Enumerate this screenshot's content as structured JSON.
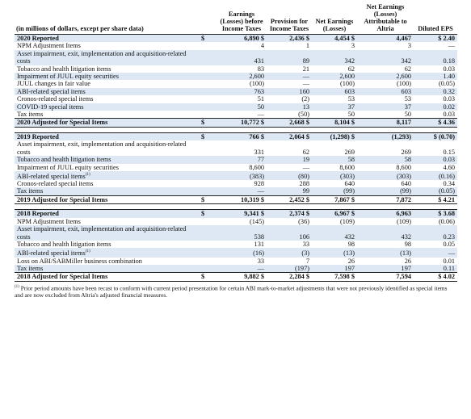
{
  "header": {
    "label": "(in millions of dollars, except per share data)",
    "columns": [
      "Earnings (Losses) before Income Taxes",
      "Provision for Income Taxes",
      "Net Earnings (Losses)",
      "Net Earnings (Losses) Attributable to Altria",
      "Diluted EPS"
    ]
  },
  "sections": [
    {
      "rows": [
        {
          "label": "2020 Reported",
          "currency": "$",
          "cells": [
            "6,890 $",
            "2,436 $",
            "4,454 $",
            "4,467",
            "$ 2.40"
          ]
        },
        {
          "label": "NPM Adjustment Items",
          "cells": [
            "4",
            "1",
            "3",
            "3",
            "—"
          ]
        },
        {
          "label": "Asset impairment, exit, implementation and acquisition-related costs",
          "cells": [
            "431",
            "89",
            "342",
            "342",
            "0.18"
          ]
        },
        {
          "label": "Tobacco and health litigation items",
          "cells": [
            "83",
            "21",
            "62",
            "62",
            "0.03"
          ]
        },
        {
          "label": "Impairment of JUUL equity securities",
          "cells": [
            "2,600",
            "—",
            "2,600",
            "2,600",
            "1.40"
          ]
        },
        {
          "label": "JUUL changes in fair value",
          "cells": [
            "(100)",
            "—",
            "(100)",
            "(100)",
            "(0.05)"
          ]
        },
        {
          "label": "ABI-related special items",
          "cells": [
            "763",
            "160",
            "603",
            "603",
            "0.32"
          ]
        },
        {
          "label": "Cronos-related special items",
          "cells": [
            "51",
            "(2)",
            "53",
            "53",
            "0.03"
          ]
        },
        {
          "label": "COVID-19 special items",
          "cells": [
            "50",
            "13",
            "37",
            "37",
            "0.02"
          ]
        },
        {
          "label": "Tax items",
          "cells": [
            "—",
            "(50)",
            "50",
            "50",
            "0.03"
          ]
        },
        {
          "label": "2020 Adjusted for Special Items",
          "currency": "$",
          "cells": [
            "10,772 $",
            "2,668 $",
            "8,104 $",
            "8,117",
            "$ 4.36"
          ]
        }
      ]
    },
    {
      "rows": [
        {
          "label": "2019 Reported",
          "currency": "$",
          "cells": [
            "766 $",
            "2,064 $",
            "(1,298) $",
            "(1,293)",
            "$ (0.70)"
          ]
        },
        {
          "label": "Asset impairment, exit, implementation and acquisition-related costs",
          "cells": [
            "331",
            "62",
            "269",
            "269",
            "0.15"
          ]
        },
        {
          "label": "Tobacco and health litigation items",
          "cells": [
            "77",
            "19",
            "58",
            "58",
            "0.03"
          ]
        },
        {
          "label": "Impairment of JUUL equity securities",
          "cells": [
            "8,600",
            "—",
            "8,600",
            "8,600",
            "4.60"
          ]
        },
        {
          "label": "ABI-related special items",
          "note": "(1)",
          "cells": [
            "(383)",
            "(80)",
            "(303)",
            "(303)",
            "(0.16)"
          ]
        },
        {
          "label": "Cronos-related special items",
          "cells": [
            "928",
            "288",
            "640",
            "640",
            "0.34"
          ]
        },
        {
          "label": "Tax items",
          "cells": [
            "—",
            "99",
            "(99)",
            "(99)",
            "(0.05)"
          ]
        },
        {
          "label": "2019 Adjusted for Special Items",
          "currency": "$",
          "cells": [
            "10,319 $",
            "2,452 $",
            "7,867 $",
            "7,872",
            "$ 4.21"
          ]
        }
      ]
    },
    {
      "rows": [
        {
          "label": "2018 Reported",
          "currency": "$",
          "cells": [
            "9,341 $",
            "2,374 $",
            "6,967 $",
            "6,963",
            "$ 3.68"
          ]
        },
        {
          "label": "NPM Adjustment Items",
          "cells": [
            "(145)",
            "(36)",
            "(109)",
            "(109)",
            "(0.06)"
          ]
        },
        {
          "label": "Asset impairment, exit, implementation and acquisition-related costs",
          "cells": [
            "538",
            "106",
            "432",
            "432",
            "0.23"
          ]
        },
        {
          "label": "Tobacco and health litigation items",
          "cells": [
            "131",
            "33",
            "98",
            "98",
            "0.05"
          ]
        },
        {
          "label": "ABI-related special items",
          "note": "(1)",
          "cells": [
            "(16)",
            "(3)",
            "(13)",
            "(13)",
            "—"
          ]
        },
        {
          "label": "Loss on ABI/SABMiller business combination",
          "cells": [
            "33",
            "7",
            "26",
            "26",
            "0.01"
          ]
        },
        {
          "label": "Tax items",
          "cells": [
            "—",
            "(197)",
            "197",
            "197",
            "0.11"
          ]
        },
        {
          "label": "2018 Adjusted for Special Items",
          "currency": "$",
          "cells": [
            "9,882 $",
            "2,284 $",
            "7,598 $",
            "7,594",
            "$ 4.02"
          ]
        }
      ]
    }
  ],
  "footnote": {
    "mark": "(1)",
    "text": "Prior period amounts have been recast to conform with current period presentation for certain ABI mark-to-market adjustments that were not previously identified as special items and are now excluded from Altria's adjusted financial measures."
  }
}
